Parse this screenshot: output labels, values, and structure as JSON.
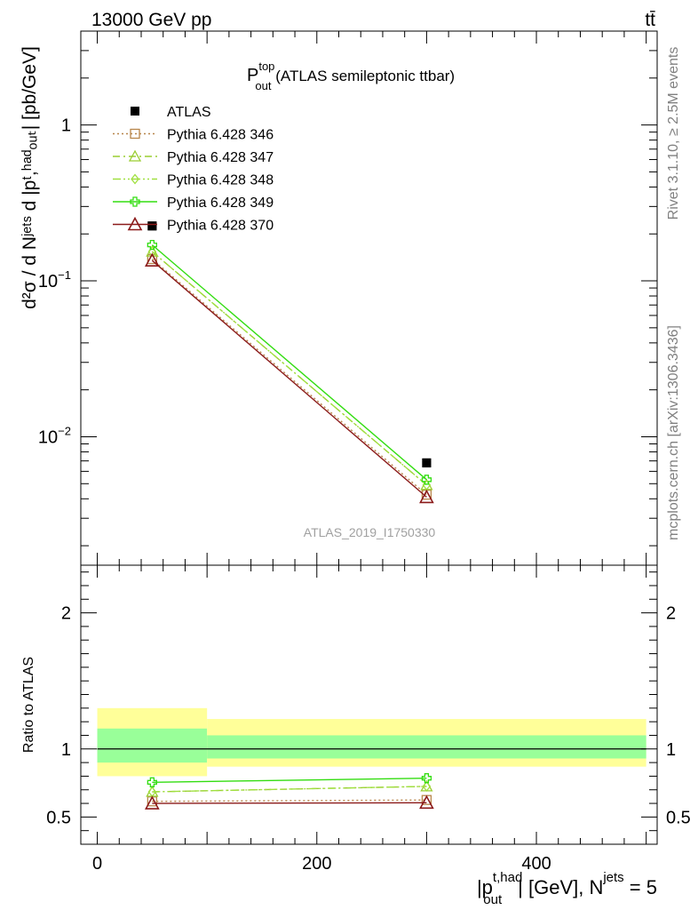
{
  "header": {
    "energy_label": "13000 GeV pp",
    "process_label": "tt̄"
  },
  "side_labels": {
    "rivet": "Rivet 3.1.10, ≥ 2.5M events",
    "mcplots": "mcplots.cern.ch [arXiv:1306.3436]"
  },
  "colors": {
    "atlas": "#000000",
    "p346": "#b8864b",
    "p347": "#9acd32",
    "p348": "#a0e040",
    "p349": "#33dd11",
    "p370": "#8b1a1a",
    "band_inner": "#99ff99",
    "band_outer": "#ffff99"
  },
  "chart_data": [
    {
      "type": "line",
      "title_main": "P",
      "title_sup": "top",
      "title_sub": "out",
      "title_rest": " (ATLAS semileptonic ttbar)",
      "watermark": "ATLAS_2019_I1750330",
      "ylabel": "d²σ / d Nʲᵉᵗˢ d |pᵗ,ʰᵃᵈₒᵤₜ| [pb/GeV]",
      "yscale": "log",
      "ylim": [
        0.0015,
        4.0
      ],
      "xlim": [
        -15,
        510
      ],
      "y_tick_labels": [
        {
          "value": 1,
          "label": "1",
          "exp": ""
        },
        {
          "value": 0.1,
          "label": "10",
          "exp": "−1"
        },
        {
          "value": 0.01,
          "label": "10",
          "exp": "−2"
        }
      ],
      "legend_position": "top-left",
      "series": [
        {
          "name": "ATLAS",
          "style": "data",
          "x": [
            50,
            300
          ],
          "y": [
            0.225,
            0.0068
          ],
          "xerr": [
            50,
            200
          ]
        },
        {
          "name": "Pythia 6.428 346",
          "style": "p346",
          "x": [
            50,
            300
          ],
          "y": [
            0.138,
            0.00425
          ]
        },
        {
          "name": "Pythia 6.428 347",
          "style": "p347",
          "x": [
            50,
            300
          ],
          "y": [
            0.154,
            0.0049
          ]
        },
        {
          "name": "Pythia 6.428 348",
          "style": "p348",
          "x": [
            50,
            300
          ],
          "y": [
            0.154,
            0.0049
          ]
        },
        {
          "name": "Pythia 6.428 349",
          "style": "p349",
          "x": [
            50,
            300
          ],
          "y": [
            0.17,
            0.0053
          ]
        },
        {
          "name": "Pythia 6.428 370",
          "style": "p370",
          "x": [
            50,
            300
          ],
          "y": [
            0.135,
            0.0041
          ]
        }
      ]
    },
    {
      "type": "line",
      "ylabel": "Ratio to ATLAS",
      "xlabel": "|pᵗ,ʰᵃᵈₒᵤₜ| [GeV], Nʲᵉᵗˢ = 5",
      "xlabel_main": "|p",
      "xlabel_sup": "t,had",
      "xlabel_sub": "out",
      "xlabel_mid": "| [GeV], N",
      "xlabel_sup2": "jets",
      "xlabel_end": " = 5",
      "ylim": [
        0.3,
        2.35
      ],
      "xlim": [
        -15,
        510
      ],
      "x_ticks": [
        0,
        200,
        400
      ],
      "x_tick_labels": [
        "0",
        "200",
        "400"
      ],
      "y_ticks": [
        0.5,
        1,
        2
      ],
      "y_tick_labels": [
        "0.5",
        "1",
        "2"
      ],
      "bands": [
        {
          "x0": 0,
          "x1": 100,
          "inner": [
            0.9,
            1.15
          ],
          "outer": [
            0.8,
            1.3
          ]
        },
        {
          "x0": 100,
          "x1": 500,
          "inner": [
            0.93,
            1.1
          ],
          "outer": [
            0.87,
            1.22
          ]
        }
      ],
      "series": [
        {
          "name": "Pythia 6.428 346",
          "style": "p346",
          "x": [
            50,
            300
          ],
          "y": [
            0.615,
            0.625
          ]
        },
        {
          "name": "Pythia 6.428 347",
          "style": "p347",
          "x": [
            50,
            300
          ],
          "y": [
            0.685,
            0.725
          ]
        },
        {
          "name": "Pythia 6.428 348",
          "style": "p348",
          "x": [
            50,
            300
          ],
          "y": [
            0.685,
            0.725
          ]
        },
        {
          "name": "Pythia 6.428 349",
          "style": "p349",
          "x": [
            50,
            300
          ],
          "y": [
            0.755,
            0.785
          ]
        },
        {
          "name": "Pythia 6.428 370",
          "style": "p370",
          "x": [
            50,
            300
          ],
          "y": [
            0.6,
            0.605
          ]
        }
      ]
    }
  ]
}
